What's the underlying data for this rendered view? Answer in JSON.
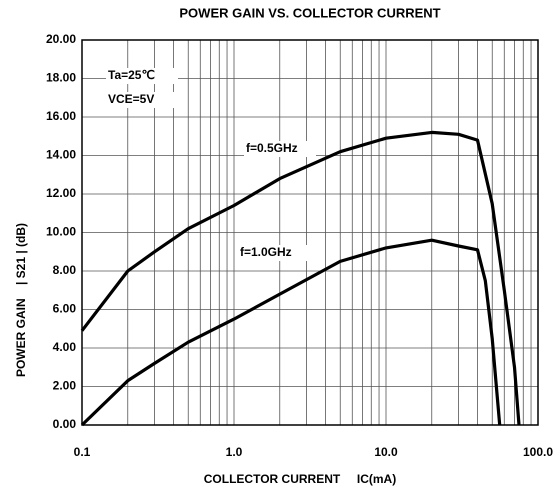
{
  "chart_data": {
    "type": "line",
    "title": "POWER GAIN VS. COLLECTOR CURRENT",
    "x_label": "COLLECTOR CURRENT     IC(mA)",
    "y_label": "POWER GAIN    | S21 | (dB)",
    "annotations": [
      "Ta=25℃",
      "VCE=5V",
      "f=0.5GHz",
      "f=1.0GHz"
    ],
    "x_scale": "log",
    "xlim": [
      0.1,
      100
    ],
    "xticks": [
      0.1,
      {
        "value": 1,
        "label": "1.0"
      },
      {
        "value": 10,
        "label": "10.0"
      },
      {
        "value": 100,
        "label": "100.0"
      }
    ],
    "xminorticks": [
      0.2,
      0.3,
      0.4,
      0.5,
      0.6,
      0.7,
      0.8,
      0.9,
      2,
      3,
      4,
      5,
      6,
      7,
      8,
      9,
      20,
      30,
      40,
      50,
      60,
      70,
      80,
      90
    ],
    "ylim": [
      0,
      20
    ],
    "yticks": [
      {
        "value": 0,
        "label": "0.00"
      },
      {
        "value": 2,
        "label": "2.00"
      },
      {
        "value": 4,
        "label": "4.00"
      },
      {
        "value": 6,
        "label": "6.00"
      },
      {
        "value": 8,
        "label": "8.00"
      },
      {
        "value": 10,
        "label": "10.00"
      },
      {
        "value": 12,
        "label": "12.00"
      },
      {
        "value": 14,
        "label": "14.00"
      },
      {
        "value": 16,
        "label": "16.00"
      },
      {
        "value": 18,
        "label": "18.00"
      },
      {
        "value": 20,
        "label": "20.00"
      }
    ],
    "grid": true,
    "series": [
      {
        "color": "#000000",
        "x": [
          0.1,
          0.2,
          0.3,
          0.5,
          1,
          2,
          5,
          10,
          20,
          30,
          40,
          50,
          60,
          70,
          75
        ],
        "values": [
          4.9,
          8.0,
          9.0,
          10.2,
          11.4,
          12.8,
          14.2,
          14.9,
          15.2,
          15.1,
          14.8,
          11.5,
          7,
          3,
          0
        ]
      },
      {
        "color": "#000000",
        "x": [
          0.1,
          0.2,
          0.3,
          0.5,
          1,
          2,
          5,
          10,
          20,
          30,
          40,
          45,
          50,
          56
        ],
        "values": [
          0,
          2.3,
          3.2,
          4.3,
          5.5,
          6.8,
          8.5,
          9.2,
          9.6,
          9.3,
          9.1,
          7.5,
          4.5,
          0
        ]
      }
    ]
  }
}
